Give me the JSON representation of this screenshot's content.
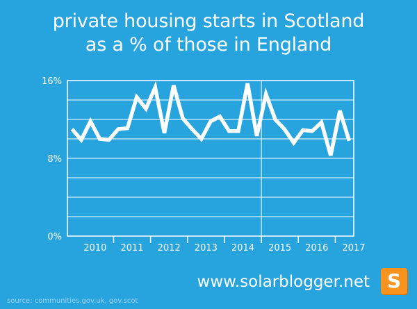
{
  "header": {
    "title_line1": "private housing starts in Scotland",
    "title_line2": "as a % of those in England"
  },
  "footer": {
    "website": "www.solarblogger.net",
    "logo_letter": "S",
    "source": "source: communities.gov.uk, gov.scot"
  },
  "colors": {
    "background": "#27a4de",
    "line": "#ffffff",
    "grid": "#ffffff",
    "logo": "#f7931e"
  },
  "chart_data": {
    "type": "line",
    "title": "private housing starts in Scotland as a % of those in England",
    "xlabel": "",
    "ylabel": "",
    "ylim": [
      0,
      16
    ],
    "xlim": [
      2009.75,
      2017.5
    ],
    "yticks": [
      "0%",
      "8%",
      "16%"
    ],
    "xticks": [
      "2010",
      "2011",
      "2012",
      "2013",
      "2014",
      "2015",
      "2016",
      "2017"
    ],
    "grid": true,
    "series": [
      {
        "x": [
          2009.875,
          2010.125,
          2010.375,
          2010.625,
          2010.875,
          2011.125,
          2011.375,
          2011.625,
          2011.875,
          2012.125,
          2012.375,
          2012.625,
          2012.875,
          2013.125,
          2013.375,
          2013.625,
          2013.875,
          2014.125,
          2014.375,
          2014.625,
          2014.875,
          2015.125,
          2015.375,
          2015.625,
          2015.875,
          2016.125,
          2016.375,
          2016.625,
          2016.875,
          2017.125,
          2017.375
        ],
        "values": [
          11.0,
          9.9,
          11.8,
          10.0,
          9.9,
          11.0,
          11.1,
          14.3,
          13.1,
          15.3,
          10.6,
          15.5,
          12.1,
          11.0,
          10.0,
          11.8,
          12.3,
          10.8,
          10.8,
          15.7,
          10.3,
          14.6,
          12.0,
          11.0,
          9.6,
          10.9,
          10.8,
          11.7,
          8.3,
          12.9,
          9.8
        ]
      }
    ]
  }
}
